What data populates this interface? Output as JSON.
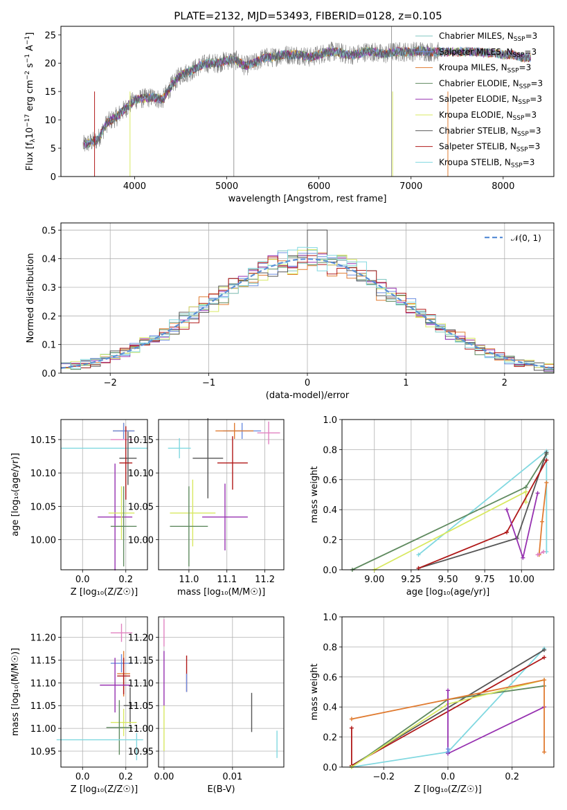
{
  "figure": {
    "title": "PLATE=2132, MJD=53493, FIBERID=0128, z=0.105",
    "models": [
      {
        "name": "Chabrier MILES",
        "color": "#7fc7c0",
        "legend": "Chabrier MILES, N"
      },
      {
        "name": "Salpeter MILES",
        "color": "#6b8de0",
        "legend": "Salpeter MILES, N"
      },
      {
        "name": "Kroupa MILES",
        "color": "#e07b30",
        "legend": "Kroupa MILES, N"
      },
      {
        "name": "Chabrier ELODIE",
        "color": "#5f8a5f",
        "legend": "Chabrier ELODIE, N"
      },
      {
        "name": "Salpeter ELODIE",
        "color": "#9630b0",
        "legend": "Salpeter ELODIE, N"
      },
      {
        "name": "Kroupa ELODIE",
        "color": "#d8e860",
        "legend": "Kroupa ELODIE, N"
      },
      {
        "name": "Chabrier STELIB",
        "color": "#555555",
        "legend": "Chabrier STELIB, N"
      },
      {
        "name": "Salpeter STELIB",
        "color": "#b01818",
        "legend": "Salpeter STELIB, N"
      },
      {
        "name": "Kroupa STELIB",
        "color": "#80d8e0",
        "legend": "Kroupa STELIB, N"
      }
    ],
    "legend_sub": "SSP",
    "legend_suffix": "=3",
    "pink_color": "#e080c0"
  },
  "chart_data": [
    {
      "type": "line",
      "panel": "spectrum",
      "xlabel": "wavelength [Angstrom, rest frame]",
      "ylabel": "Flux [f",
      "ylabel_sub": "λ",
      "ylabel_rest": "10",
      "ylabel_exp1": "−17",
      "ylabel_mid": " erg cm",
      "ylabel_exp2": "−2",
      "ylabel_s": " s",
      "ylabel_exp3": "−1",
      "ylabel_end": " A",
      "ylabel_exp4": "−1",
      "ylabel_close": "]",
      "xlim": [
        3200,
        8550
      ],
      "ylim": [
        0,
        26.5
      ],
      "xticks": [
        4000,
        5000,
        6000,
        7000,
        8000
      ],
      "yticks": [
        0,
        5,
        10,
        15,
        20,
        25
      ],
      "continuum": [
        [
          3440,
          5.5
        ],
        [
          3600,
          6.5
        ],
        [
          3700,
          9.5
        ],
        [
          3800,
          10.5
        ],
        [
          3900,
          12
        ],
        [
          4000,
          13.5
        ],
        [
          4100,
          13.8
        ],
        [
          4200,
          14
        ],
        [
          4300,
          13.5
        ],
        [
          4400,
          16
        ],
        [
          4500,
          18
        ],
        [
          4600,
          18.5
        ],
        [
          4700,
          19.5
        ],
        [
          4800,
          20
        ],
        [
          4900,
          20
        ],
        [
          5000,
          20.5
        ],
        [
          5100,
          20.5
        ],
        [
          5200,
          19.5
        ],
        [
          5300,
          20
        ],
        [
          5400,
          21
        ],
        [
          5500,
          21
        ],
        [
          5600,
          21.5
        ],
        [
          5700,
          21.5
        ],
        [
          5800,
          21.5
        ],
        [
          5900,
          21
        ],
        [
          6000,
          21.5
        ],
        [
          6100,
          22
        ],
        [
          6200,
          22
        ],
        [
          6300,
          21.5
        ],
        [
          6400,
          21.5
        ],
        [
          6500,
          22
        ],
        [
          6600,
          22
        ],
        [
          6700,
          21.5
        ],
        [
          6800,
          22
        ],
        [
          6900,
          22
        ],
        [
          7000,
          22
        ],
        [
          7100,
          22.2
        ],
        [
          7200,
          22
        ],
        [
          7300,
          22
        ],
        [
          7400,
          22
        ],
        [
          7500,
          22
        ],
        [
          7600,
          22
        ],
        [
          7700,
          22
        ],
        [
          7800,
          21.8
        ],
        [
          7900,
          21.8
        ],
        [
          8000,
          21.5
        ],
        [
          8100,
          21.5
        ],
        [
          8200,
          21
        ],
        [
          8300,
          21
        ]
      ],
      "sky_spikes": [
        {
          "x": 5077,
          "y": 26.5
        },
        {
          "x": 6789,
          "y": 26.5
        }
      ],
      "dropouts": [
        {
          "x": 3565,
          "c": "#b01818"
        },
        {
          "x": 3950,
          "c": "#d8e860"
        },
        {
          "x": 6800,
          "c": "#d8e860"
        },
        {
          "x": 7400,
          "c": "#e07b30"
        }
      ]
    },
    {
      "type": "line",
      "panel": "residuals",
      "xlabel": "(data-model)/error",
      "ylabel": "Normed distribution",
      "xlim": [
        -2.5,
        2.5
      ],
      "ylim": [
        0,
        0.525
      ],
      "xticks": [
        -2,
        -1,
        0,
        1,
        2
      ],
      "yticks": [
        0.0,
        0.1,
        0.2,
        0.3,
        0.4,
        0.5
      ],
      "legend": "𝒩(0, 1)",
      "binwidth": 0.1,
      "gauss_color": "#5b8fd6"
    },
    {
      "type": "scatter",
      "panel": "age-Z",
      "xlabel": "Z [log₁₀(Z/Z☉)]",
      "ylabel": "age  [log₁₀(age/yr)]",
      "xlim": [
        -0.1,
        0.3
      ],
      "ylim": [
        9.955,
        10.18
      ],
      "xticks": [
        0.0,
        0.2
      ],
      "yticks": [
        10.0,
        10.05,
        10.1,
        10.15
      ],
      "points": [
        {
          "x": 0.1,
          "xe": 0.2,
          "y": 10.137,
          "ye": 0.0,
          "c": "#80d8e0"
        },
        {
          "x": 0.18,
          "xe": 0.05,
          "y": 10.15,
          "ye": 0.0,
          "c": "#e080c0"
        },
        {
          "x": 0.19,
          "xe": 0.05,
          "y": 10.163,
          "ye": 0.012,
          "c": "#e07b30"
        },
        {
          "x": 0.19,
          "xe": 0.05,
          "y": 10.163,
          "ye": 0.012,
          "c": "#6b8de0"
        },
        {
          "x": 0.21,
          "xe": 0.04,
          "y": 10.122,
          "ye": 0.04,
          "c": "#555555"
        },
        {
          "x": 0.2,
          "xe": 0.03,
          "y": 10.115,
          "ye": 0.055,
          "c": "#b01818"
        },
        {
          "x": 0.15,
          "xe": 0.08,
          "y": 10.034,
          "ye": 0.08,
          "c": "#9630b0"
        },
        {
          "x": 0.18,
          "xe": 0.06,
          "y": 10.04,
          "ye": 0.04,
          "c": "#d8e860"
        },
        {
          "x": 0.19,
          "xe": 0.06,
          "y": 10.02,
          "ye": 0.06,
          "c": "#5f8a5f"
        }
      ]
    },
    {
      "type": "scatter",
      "panel": "age-mass",
      "xlabel": "mass [log₁₀(M/M☉)]",
      "xlim": [
        10.92,
        11.25
      ],
      "ylim": [
        9.955,
        10.18
      ],
      "xticks": [
        11.0,
        11.1,
        11.2
      ],
      "yticks": [
        10.0,
        10.05,
        10.1,
        10.15
      ],
      "points": [
        {
          "x": 10.975,
          "xe": 0.03,
          "y": 10.137,
          "ye": 0.015,
          "c": "#80d8e0"
        },
        {
          "x": 11.21,
          "xe": 0.03,
          "y": 10.16,
          "ye": 0.017,
          "c": "#e080c0"
        },
        {
          "x": 11.14,
          "xe": 0.05,
          "y": 10.163,
          "ye": 0.012,
          "c": "#6b8de0"
        },
        {
          "x": 11.12,
          "xe": 0.05,
          "y": 10.163,
          "ye": 0.012,
          "c": "#e07b30"
        },
        {
          "x": 11.05,
          "xe": 0.04,
          "y": 10.122,
          "ye": 0.06,
          "c": "#555555"
        },
        {
          "x": 11.115,
          "xe": 0.04,
          "y": 10.115,
          "ye": 0.04,
          "c": "#b01818"
        },
        {
          "x": 11.095,
          "xe": 0.06,
          "y": 10.034,
          "ye": 0.05,
          "c": "#9630b0"
        },
        {
          "x": 11.01,
          "xe": 0.06,
          "y": 10.04,
          "ye": 0.05,
          "c": "#d8e860"
        },
        {
          "x": 11.0,
          "xe": 0.05,
          "y": 10.02,
          "ye": 0.06,
          "c": "#5f8a5f"
        }
      ]
    },
    {
      "type": "line",
      "panel": "weight-age",
      "xlabel": "age  [log₁₀(age/yr)]",
      "ylabel": "mass weight",
      "xlim": [
        8.78,
        10.22
      ],
      "ylim": [
        0,
        1.0
      ],
      "xticks": [
        9.0,
        9.25,
        9.5,
        9.75,
        10.0
      ],
      "yticks": [
        0.0,
        0.2,
        0.4,
        0.6,
        0.8,
        1.0
      ],
      "series": [
        {
          "c": "#80d8e0",
          "pts": [
            [
              9.3,
              0.1
            ],
            [
              10.17,
              0.79
            ],
            [
              10.17,
              0.12
            ]
          ]
        },
        {
          "c": "#5f8a5f",
          "pts": [
            [
              8.85,
              0.0
            ],
            [
              10.03,
              0.55
            ],
            [
              10.17,
              0.77
            ]
          ]
        },
        {
          "c": "#d8e860",
          "pts": [
            [
              9.0,
              0.0
            ],
            [
              10.03,
              0.52
            ],
            [
              10.03,
              0.45
            ]
          ]
        },
        {
          "c": "#555555",
          "pts": [
            [
              9.3,
              0.01
            ],
            [
              9.97,
              0.21
            ],
            [
              10.17,
              0.78
            ]
          ]
        },
        {
          "c": "#b01818",
          "pts": [
            [
              9.3,
              0.01
            ],
            [
              9.9,
              0.25
            ],
            [
              10.17,
              0.73
            ]
          ]
        },
        {
          "c": "#9630b0",
          "pts": [
            [
              9.9,
              0.4
            ],
            [
              10.01,
              0.08
            ],
            [
              10.11,
              0.51
            ]
          ]
        },
        {
          "c": "#e07b30",
          "pts": [
            [
              10.12,
              0.1
            ],
            [
              10.14,
              0.32
            ],
            [
              10.17,
              0.58
            ]
          ]
        },
        {
          "c": "#e080c0",
          "pts": [
            [
              10.11,
              0.1
            ],
            [
              10.15,
              0.12
            ]
          ]
        }
      ]
    },
    {
      "type": "scatter",
      "panel": "mass-Z",
      "xlabel": "Z [log₁₀(Z/Z☉)]",
      "ylabel": "mass [log₁₀(M/M☉)]",
      "xlim": [
        -0.1,
        0.3
      ],
      "ylim": [
        10.915,
        11.245
      ],
      "xticks": [
        0.0,
        0.2
      ],
      "yticks": [
        10.95,
        11.0,
        11.05,
        11.1,
        11.15,
        11.2
      ],
      "points": [
        {
          "x": 0.18,
          "xe": 0.05,
          "y": 11.21,
          "ye": 0.02,
          "c": "#e080c0"
        },
        {
          "x": 0.18,
          "xe": 0.05,
          "y": 11.143,
          "ye": 0.02,
          "c": "#6b8de0"
        },
        {
          "x": 0.19,
          "xe": 0.03,
          "y": 11.12,
          "ye": 0.05,
          "c": "#e07b30"
        },
        {
          "x": 0.19,
          "xe": 0.03,
          "y": 11.115,
          "ye": 0.04,
          "c": "#b01818"
        },
        {
          "x": 0.15,
          "xe": 0.07,
          "y": 11.095,
          "ye": 0.06,
          "c": "#9630b0"
        },
        {
          "x": 0.22,
          "xe": 0.03,
          "y": 11.05,
          "ye": 0.04,
          "c": "#555555"
        },
        {
          "x": 0.19,
          "xe": 0.06,
          "y": 11.013,
          "ye": 0.03,
          "c": "#d8e860"
        },
        {
          "x": 0.17,
          "xe": 0.06,
          "y": 11.002,
          "ye": 0.06,
          "c": "#5f8a5f"
        },
        {
          "x": 0.08,
          "xe": 0.2,
          "y": 10.975,
          "ye": 0.0,
          "c": "#80d8e0"
        },
        {
          "x": 0.25,
          "xe": 0.0,
          "y": 10.96,
          "ye": 0.03,
          "c": "#80d8e0"
        }
      ]
    },
    {
      "type": "scatter",
      "panel": "mass-ebv",
      "xlabel": "E(B-V)",
      "xlim": [
        -0.0008,
        0.0175
      ],
      "ylim": [
        10.915,
        11.245
      ],
      "xticks": [
        0.0,
        0.01
      ],
      "yticks": [
        10.95,
        11.0,
        11.05,
        11.1,
        11.15,
        11.2
      ],
      "points": [
        {
          "x": 0.0,
          "xe": 0.0,
          "y": 11.21,
          "ye": 0.03,
          "c": "#e080c0"
        },
        {
          "x": 0.0,
          "xe": 0.0,
          "y": 11.11,
          "ye": 0.06,
          "c": "#9630b0"
        },
        {
          "x": 0.0,
          "xe": 0.0,
          "y": 11.0,
          "ye": 0.05,
          "c": "#d8e860"
        },
        {
          "x": 0.0033,
          "xe": 0.0,
          "y": 11.12,
          "ye": 0.04,
          "c": "#b01818"
        },
        {
          "x": 0.0033,
          "xe": 0.0,
          "y": 11.1,
          "ye": 0.02,
          "c": "#6b8de0"
        },
        {
          "x": 0.0128,
          "xe": 0.0,
          "y": 11.035,
          "ye": 0.043,
          "c": "#555555"
        },
        {
          "x": 0.0165,
          "xe": 0.0,
          "y": 10.965,
          "ye": 0.03,
          "c": "#80d8e0"
        }
      ]
    },
    {
      "type": "line",
      "panel": "weight-Z",
      "xlabel": "Z [log₁₀(Z/Z☉)]",
      "ylabel": "mass weight",
      "xlim": [
        -0.33,
        0.33
      ],
      "ylim": [
        0,
        1.0
      ],
      "xticks": [
        -0.2,
        0.0,
        0.2
      ],
      "yticks": [
        0.0,
        0.2,
        0.4,
        0.6,
        0.8,
        1.0
      ],
      "series": [
        {
          "c": "#80d8e0",
          "pts": [
            [
              -0.3,
              0.0
            ],
            [
              0.0,
              0.1
            ],
            [
              0.3,
              0.79
            ]
          ]
        },
        {
          "c": "#555555",
          "pts": [
            [
              -0.3,
              0.01
            ],
            [
              0.3,
              0.78
            ]
          ]
        },
        {
          "c": "#b01818",
          "pts": [
            [
              -0.3,
              0.26
            ],
            [
              -0.3,
              0.01
            ],
            [
              0.3,
              0.73
            ]
          ]
        },
        {
          "c": "#5f8a5f",
          "pts": [
            [
              -0.3,
              0.0
            ],
            [
              0.0,
              0.45
            ],
            [
              0.3,
              0.54
            ]
          ]
        },
        {
          "c": "#d8e860",
          "pts": [
            [
              -0.3,
              0.0
            ],
            [
              0.0,
              0.42
            ],
            [
              0.3,
              0.58
            ]
          ]
        },
        {
          "c": "#9630b0",
          "pts": [
            [
              0.0,
              0.51
            ],
            [
              0.0,
              0.09
            ],
            [
              0.3,
              0.4
            ]
          ]
        },
        {
          "c": "#e07b30",
          "pts": [
            [
              -0.3,
              0.32
            ],
            [
              0.3,
              0.58
            ],
            [
              0.3,
              0.1
            ]
          ]
        },
        {
          "c": "#6b8de0",
          "pts": [
            [
              0.0,
              0.1
            ],
            [
              0.0,
              0.12
            ]
          ]
        }
      ]
    }
  ]
}
